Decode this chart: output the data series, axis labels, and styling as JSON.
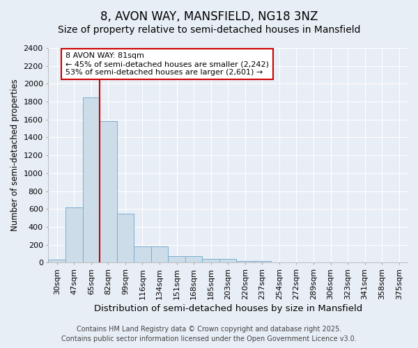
{
  "title": "8, AVON WAY, MANSFIELD, NG18 3NZ",
  "subtitle": "Size of property relative to semi-detached houses in Mansfield",
  "xlabel": "Distribution of semi-detached houses by size in Mansfield",
  "ylabel": "Number of semi-detached properties",
  "footer_line1": "Contains HM Land Registry data © Crown copyright and database right 2025.",
  "footer_line2": "Contains public sector information licensed under the Open Government Licence v3.0.",
  "categories": [
    "30sqm",
    "47sqm",
    "65sqm",
    "82sqm",
    "99sqm",
    "116sqm",
    "134sqm",
    "151sqm",
    "168sqm",
    "185sqm",
    "203sqm",
    "220sqm",
    "237sqm",
    "254sqm",
    "272sqm",
    "289sqm",
    "306sqm",
    "323sqm",
    "341sqm",
    "358sqm",
    "375sqm"
  ],
  "values": [
    30,
    620,
    1850,
    1580,
    550,
    185,
    185,
    75,
    75,
    40,
    40,
    20,
    15,
    0,
    0,
    0,
    0,
    0,
    0,
    0,
    0
  ],
  "bar_color": "#ccdce8",
  "bar_edgecolor": "#7aafd4",
  "red_line_x": 2.5,
  "annotation_text": "8 AVON WAY: 81sqm\n← 45% of semi-detached houses are smaller (2,242)\n53% of semi-detached houses are larger (2,601) →",
  "annotation_box_facecolor": "#ffffff",
  "annotation_box_edgecolor": "#cc0000",
  "red_line_color": "#cc0000",
  "background_color": "#e8eef5",
  "plot_background_color": "#e8eef5",
  "grid_color": "#ffffff",
  "ylim": [
    0,
    2400
  ],
  "yticks": [
    0,
    200,
    400,
    600,
    800,
    1000,
    1200,
    1400,
    1600,
    1800,
    2000,
    2200,
    2400
  ],
  "title_fontsize": 12,
  "subtitle_fontsize": 10,
  "xlabel_fontsize": 9.5,
  "ylabel_fontsize": 8.5,
  "tick_fontsize": 8,
  "annot_fontsize": 8,
  "footer_fontsize": 7
}
